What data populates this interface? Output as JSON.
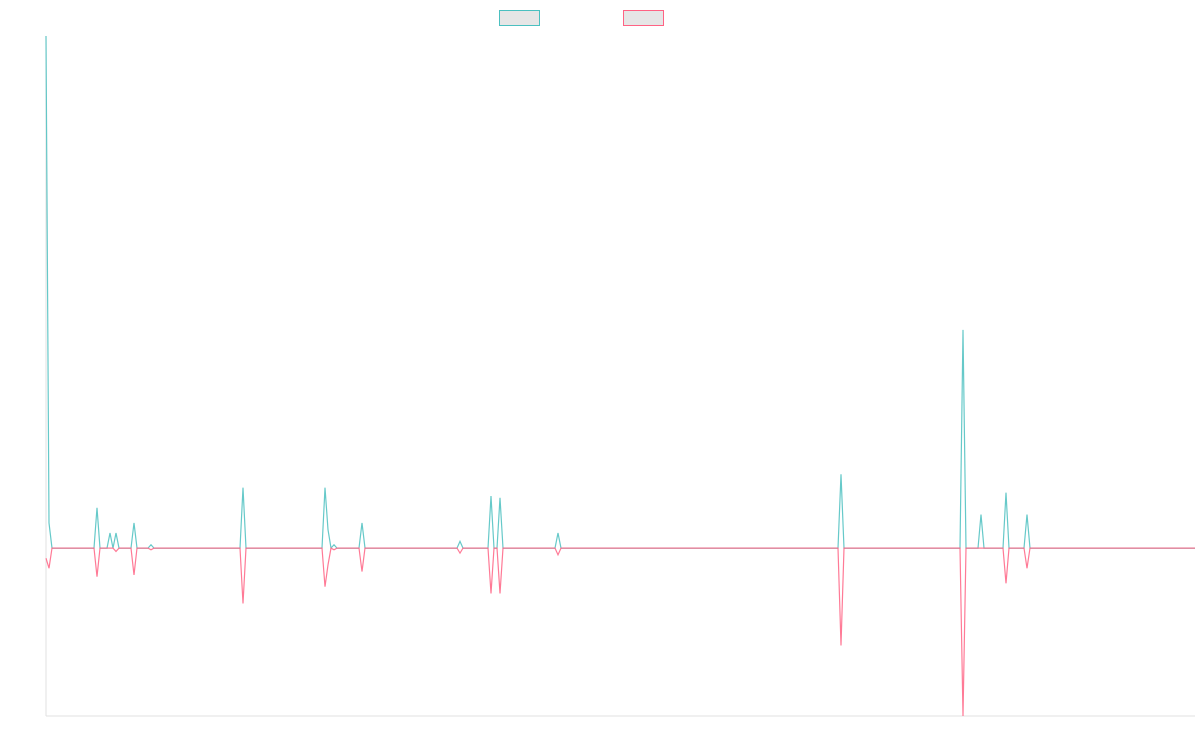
{
  "chart_data": {
    "type": "line",
    "x": [
      0,
      3,
      6,
      48,
      51,
      54,
      61,
      64,
      67,
      70,
      73,
      85,
      88,
      91,
      102,
      105,
      108,
      194,
      197,
      200,
      276,
      279,
      282,
      285,
      288,
      291,
      313,
      316,
      319,
      411,
      414,
      417,
      442,
      445,
      448,
      451,
      454,
      457,
      509,
      512,
      515,
      792,
      795,
      798,
      914,
      917,
      920,
      932,
      935,
      938,
      957,
      960,
      963,
      978,
      981,
      984,
      1149
    ],
    "series": [
      {
        "color": "#4bc0c0",
        "values": [
          3.05,
          0.15,
          0,
          0,
          0.24,
          0,
          0,
          0.09,
          0,
          0.09,
          0,
          0,
          0.15,
          0,
          0,
          0.02,
          0,
          0,
          0.36,
          0,
          0,
          0.36,
          0.11,
          0,
          0.02,
          0,
          0,
          0.15,
          0,
          0,
          0.04,
          0,
          0,
          0.31,
          0,
          0,
          0.3,
          0,
          0,
          0.09,
          0,
          0,
          0.44,
          0,
          0,
          1.3,
          0,
          0,
          0.2,
          0,
          0,
          0.33,
          0,
          0,
          0.2,
          0,
          0
        ]
      },
      {
        "color": "#ff6384",
        "values": [
          -0.06,
          -0.12,
          0,
          0,
          -0.17,
          0,
          0,
          0,
          0,
          -0.02,
          0,
          0,
          -0.16,
          0,
          0,
          -0.01,
          0,
          0,
          -0.33,
          0,
          0,
          -0.23,
          -0.1,
          0,
          -0.01,
          0,
          0,
          -0.14,
          0,
          0,
          -0.03,
          0,
          0,
          -0.27,
          0,
          0,
          -0.27,
          0,
          0,
          -0.04,
          0,
          0,
          -0.58,
          0,
          0,
          -1.0,
          0,
          0,
          0,
          0,
          0,
          -0.21,
          0,
          0,
          -0.12,
          0,
          0
        ]
      }
    ],
    "xlim": [
      0,
      1149
    ],
    "ylim": [
      -1,
      3.05
    ]
  }
}
